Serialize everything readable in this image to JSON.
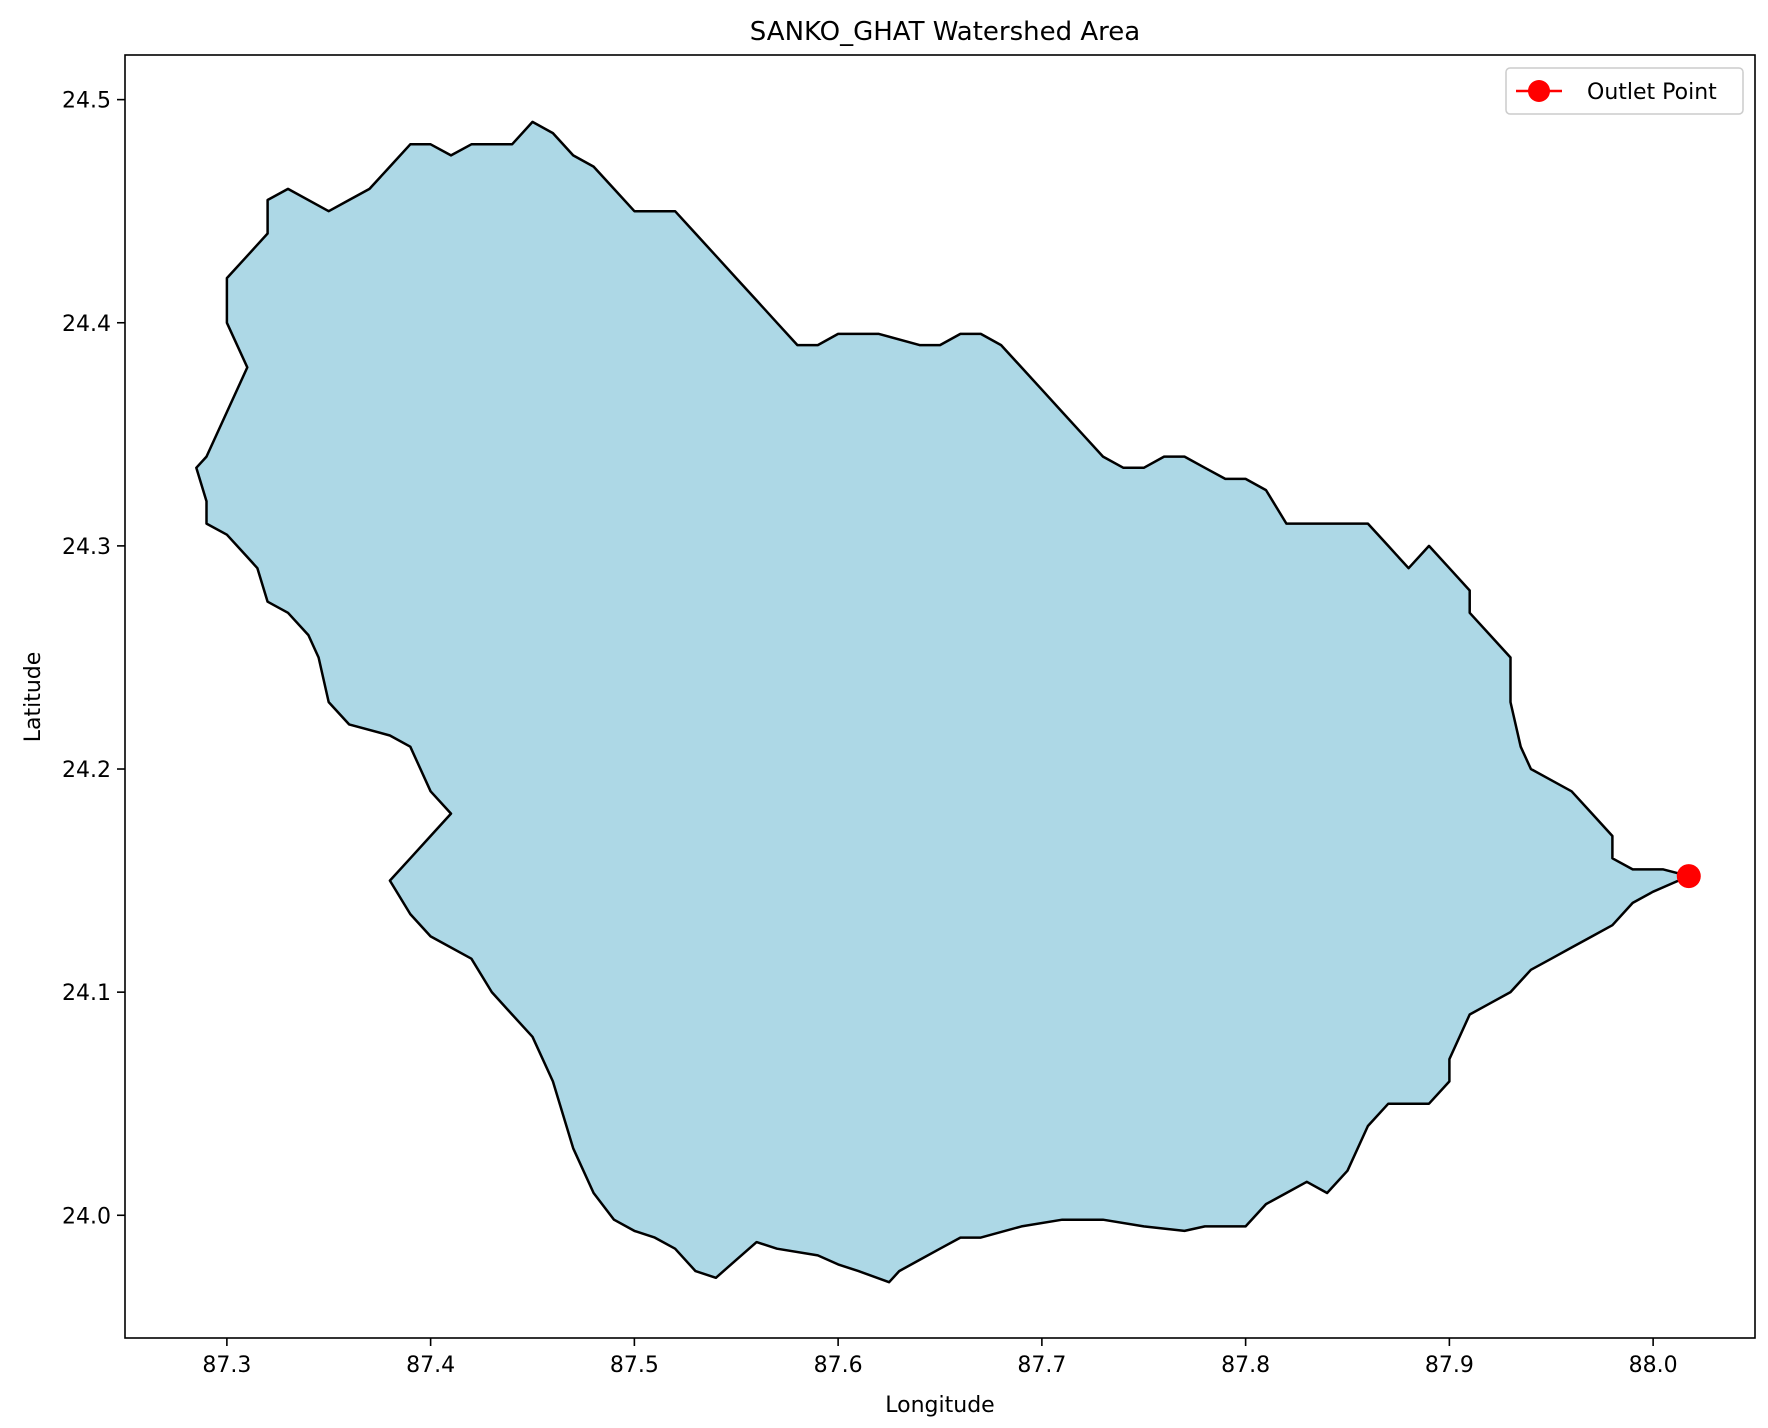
{
  "chart_data": {
    "type": "map",
    "title": "SANKO_GHAT Watershed Area",
    "xlabel": "Longitude",
    "ylabel": "Latitude",
    "xlim": [
      87.25,
      88.05
    ],
    "ylim": [
      23.945,
      24.52
    ],
    "xticks": [
      87.3,
      87.4,
      87.5,
      87.6,
      87.7,
      87.8,
      87.9,
      88.0
    ],
    "xtick_labels": [
      "87.3",
      "87.4",
      "87.5",
      "87.6",
      "87.7",
      "87.8",
      "87.9",
      "88.0"
    ],
    "yticks": [
      24.0,
      24.1,
      24.2,
      24.3,
      24.4,
      24.5
    ],
    "ytick_labels": [
      "24.0",
      "24.1",
      "24.2",
      "24.3",
      "24.4",
      "24.5"
    ],
    "grid": false,
    "legend": {
      "position": "upper-right",
      "entries": [
        {
          "label": "Outlet Point",
          "marker": "circle",
          "color": "#ff0000"
        }
      ]
    },
    "watershed": {
      "fill": "#add8e6",
      "edge": "#000000",
      "boundary": [
        [
          87.29,
          24.34
        ],
        [
          87.3,
          24.36
        ],
        [
          87.31,
          24.38
        ],
        [
          87.3,
          24.4
        ],
        [
          87.3,
          24.42
        ],
        [
          87.31,
          24.43
        ],
        [
          87.32,
          24.44
        ],
        [
          87.32,
          24.455
        ],
        [
          87.33,
          24.46
        ],
        [
          87.35,
          24.45
        ],
        [
          87.36,
          24.455
        ],
        [
          87.37,
          24.46
        ],
        [
          87.38,
          24.47
        ],
        [
          87.39,
          24.48
        ],
        [
          87.4,
          24.48
        ],
        [
          87.41,
          24.475
        ],
        [
          87.42,
          24.48
        ],
        [
          87.43,
          24.48
        ],
        [
          87.44,
          24.48
        ],
        [
          87.45,
          24.49
        ],
        [
          87.46,
          24.485
        ],
        [
          87.47,
          24.475
        ],
        [
          87.48,
          24.47
        ],
        [
          87.49,
          24.46
        ],
        [
          87.5,
          24.45
        ],
        [
          87.51,
          24.45
        ],
        [
          87.52,
          24.45
        ],
        [
          87.53,
          24.44
        ],
        [
          87.54,
          24.43
        ],
        [
          87.55,
          24.42
        ],
        [
          87.56,
          24.41
        ],
        [
          87.57,
          24.4
        ],
        [
          87.58,
          24.39
        ],
        [
          87.59,
          24.39
        ],
        [
          87.6,
          24.395
        ],
        [
          87.62,
          24.395
        ],
        [
          87.64,
          24.39
        ],
        [
          87.65,
          24.39
        ],
        [
          87.66,
          24.395
        ],
        [
          87.67,
          24.395
        ],
        [
          87.68,
          24.39
        ],
        [
          87.69,
          24.38
        ],
        [
          87.7,
          24.37
        ],
        [
          87.71,
          24.36
        ],
        [
          87.72,
          24.35
        ],
        [
          87.73,
          24.34
        ],
        [
          87.74,
          24.335
        ],
        [
          87.75,
          24.335
        ],
        [
          87.76,
          24.34
        ],
        [
          87.77,
          24.34
        ],
        [
          87.78,
          24.335
        ],
        [
          87.79,
          24.33
        ],
        [
          87.8,
          24.33
        ],
        [
          87.81,
          24.325
        ],
        [
          87.82,
          24.31
        ],
        [
          87.84,
          24.31
        ],
        [
          87.86,
          24.31
        ],
        [
          87.87,
          24.3
        ],
        [
          87.88,
          24.29
        ],
        [
          87.89,
          24.3
        ],
        [
          87.9,
          24.29
        ],
        [
          87.91,
          24.28
        ],
        [
          87.91,
          24.27
        ],
        [
          87.92,
          24.26
        ],
        [
          87.93,
          24.25
        ],
        [
          87.93,
          24.24
        ],
        [
          87.93,
          24.23
        ],
        [
          87.935,
          24.21
        ],
        [
          87.94,
          24.2
        ],
        [
          87.95,
          24.195
        ],
        [
          87.96,
          24.19
        ],
        [
          87.97,
          24.18
        ],
        [
          87.98,
          24.17
        ],
        [
          87.98,
          24.16
        ],
        [
          87.99,
          24.155
        ],
        [
          88.005,
          24.155
        ],
        [
          88.0175,
          24.152
        ],
        [
          88.0,
          24.145
        ],
        [
          87.99,
          24.14
        ],
        [
          87.98,
          24.13
        ],
        [
          87.97,
          24.125
        ],
        [
          87.96,
          24.12
        ],
        [
          87.95,
          24.115
        ],
        [
          87.94,
          24.11
        ],
        [
          87.93,
          24.1
        ],
        [
          87.92,
          24.095
        ],
        [
          87.91,
          24.09
        ],
        [
          87.9,
          24.07
        ],
        [
          87.9,
          24.06
        ],
        [
          87.89,
          24.05
        ],
        [
          87.88,
          24.05
        ],
        [
          87.87,
          24.05
        ],
        [
          87.86,
          24.04
        ],
        [
          87.85,
          24.02
        ],
        [
          87.84,
          24.01
        ],
        [
          87.83,
          24.015
        ],
        [
          87.82,
          24.01
        ],
        [
          87.81,
          24.005
        ],
        [
          87.8,
          23.995
        ],
        [
          87.79,
          23.995
        ],
        [
          87.78,
          23.995
        ],
        [
          87.77,
          23.993
        ],
        [
          87.75,
          23.995
        ],
        [
          87.73,
          23.998
        ],
        [
          87.71,
          23.998
        ],
        [
          87.69,
          23.995
        ],
        [
          87.67,
          23.99
        ],
        [
          87.66,
          23.99
        ],
        [
          87.65,
          23.985
        ],
        [
          87.64,
          23.98
        ],
        [
          87.63,
          23.975
        ],
        [
          87.625,
          23.97
        ],
        [
          87.61,
          23.975
        ],
        [
          87.6,
          23.978
        ],
        [
          87.59,
          23.982
        ],
        [
          87.57,
          23.985
        ],
        [
          87.56,
          23.988
        ],
        [
          87.55,
          23.98
        ],
        [
          87.54,
          23.972
        ],
        [
          87.53,
          23.975
        ],
        [
          87.52,
          23.985
        ],
        [
          87.51,
          23.99
        ],
        [
          87.5,
          23.993
        ],
        [
          87.49,
          23.998
        ],
        [
          87.48,
          24.01
        ],
        [
          87.47,
          24.03
        ],
        [
          87.46,
          24.06
        ],
        [
          87.45,
          24.08
        ],
        [
          87.44,
          24.09
        ],
        [
          87.43,
          24.1
        ],
        [
          87.42,
          24.115
        ],
        [
          87.4,
          24.125
        ],
        [
          87.39,
          24.135
        ],
        [
          87.38,
          24.15
        ],
        [
          87.39,
          24.16
        ],
        [
          87.4,
          24.17
        ],
        [
          87.41,
          24.18
        ],
        [
          87.4,
          24.19
        ],
        [
          87.39,
          24.21
        ],
        [
          87.38,
          24.215
        ],
        [
          87.36,
          24.22
        ],
        [
          87.35,
          24.23
        ],
        [
          87.345,
          24.25
        ],
        [
          87.34,
          24.26
        ],
        [
          87.33,
          24.27
        ],
        [
          87.32,
          24.275
        ],
        [
          87.315,
          24.29
        ],
        [
          87.31,
          24.295
        ],
        [
          87.3,
          24.305
        ],
        [
          87.29,
          24.31
        ],
        [
          87.29,
          24.32
        ],
        [
          87.285,
          24.335
        ]
      ]
    },
    "outlet_point": {
      "lon": 88.0175,
      "lat": 24.152,
      "label": "Outlet Point",
      "color": "#ff0000"
    }
  }
}
